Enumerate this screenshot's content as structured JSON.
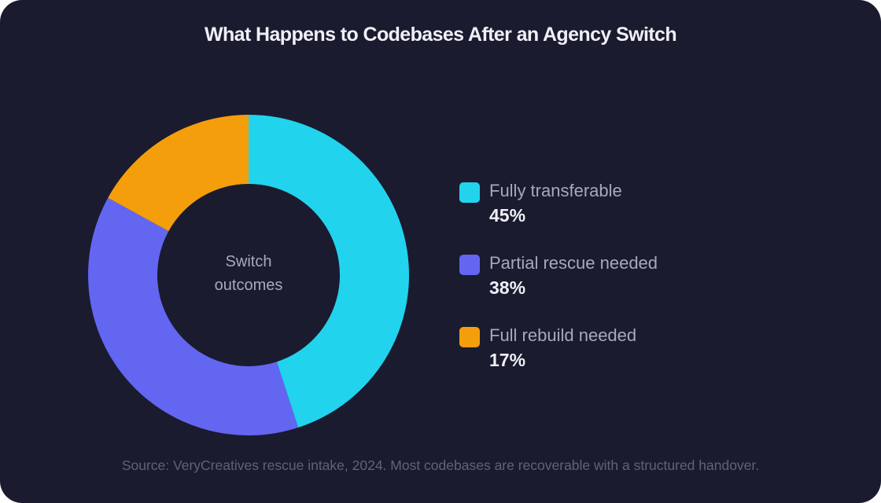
{
  "chart_data": {
    "type": "pie",
    "title": "What Happens to Codebases After an Agency Switch",
    "center_label": [
      "Switch",
      "outcomes"
    ],
    "legend_position": "right",
    "slices": [
      {
        "label": "Fully transferable",
        "value": 45,
        "display": "45%",
        "color": "#22d3ee"
      },
      {
        "label": "Partial rescue needed",
        "value": 38,
        "display": "38%",
        "color": "#6366f1"
      },
      {
        "label": "Full rebuild needed",
        "value": 17,
        "display": "17%",
        "color": "#f59e0b"
      }
    ],
    "source": "Source: VeryCreatives rescue intake, 2024. Most codebases are recoverable with a structured handover."
  },
  "colors": {
    "background": "#1a1b2e",
    "title": "#eef0f6",
    "muted": "#a4aabd",
    "source": "#5e6479"
  }
}
